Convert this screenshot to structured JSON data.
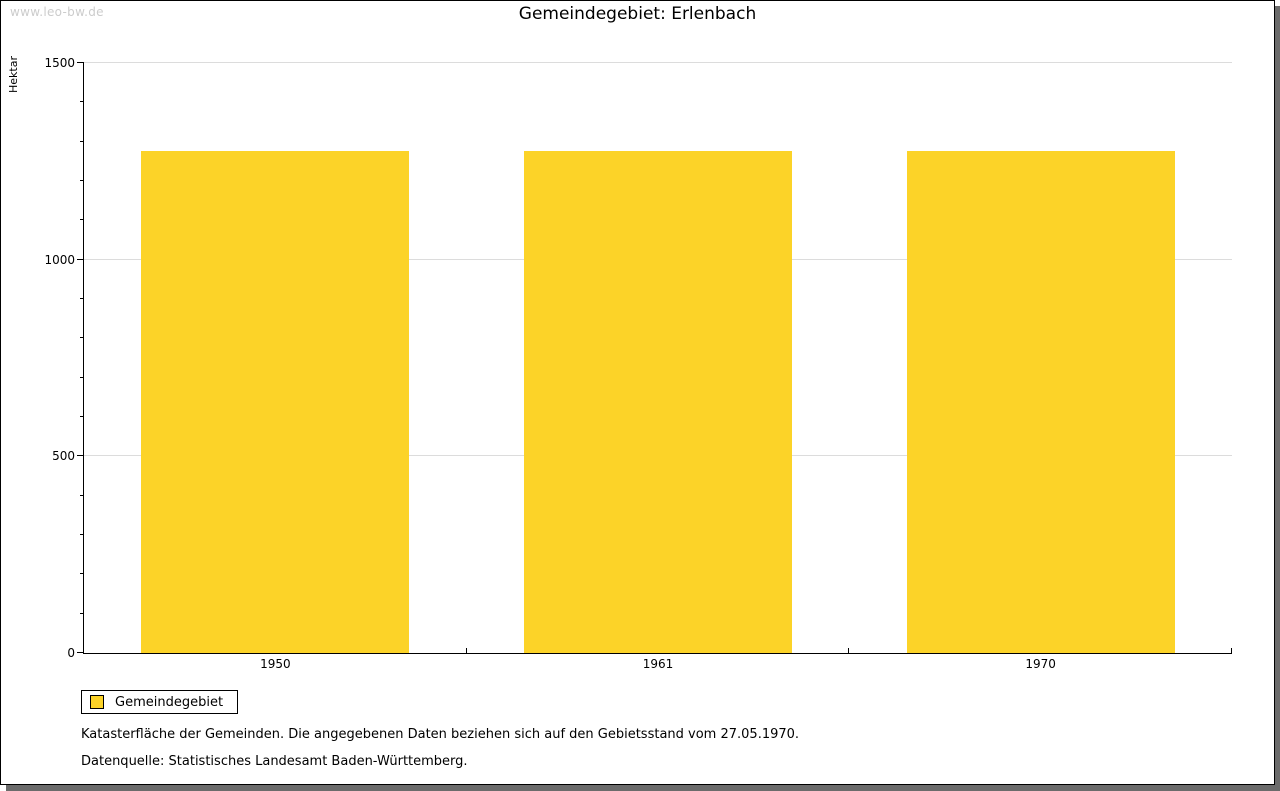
{
  "watermark": "www.leo-bw.de",
  "chart_data": {
    "type": "bar",
    "title": "Gemeindegebiet: Erlenbach",
    "categories": [
      "1950",
      "1961",
      "1970"
    ],
    "series": [
      {
        "name": "Gemeindegebiet",
        "values": [
          1277,
          1277,
          1277
        ]
      }
    ],
    "xlabel": "",
    "ylabel": "Hektar",
    "ylim": [
      0,
      1500
    ],
    "yticks": [
      0,
      500,
      1000,
      1500
    ],
    "y_minor_tick_step": 100,
    "grid": true,
    "gridline_color": "#dcdcdc",
    "bar_color": "#FCD328",
    "legend_position": "bottom-left"
  },
  "legend": {
    "items": [
      {
        "label": "Gemeindegebiet",
        "color": "#FCD328"
      }
    ]
  },
  "footnotes": [
    "Katasterfläche der Gemeinden. Die angegebenen Daten beziehen sich auf den Gebietsstand vom 27.05.1970.",
    "Datenquelle: Statistisches Landesamt Baden-Württemberg."
  ],
  "colors": {
    "watermark": "#cccccc",
    "axis": "#000000",
    "background": "#ffffff",
    "frame_shadow": "#6b6b6b"
  }
}
